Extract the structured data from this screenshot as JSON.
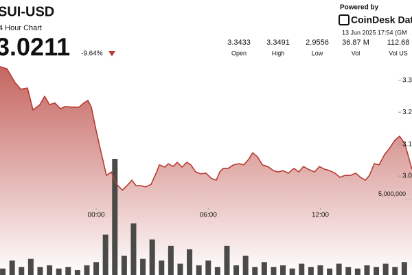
{
  "chart_data": {
    "type": "area",
    "symbol": "SUI-USD",
    "subtitle": "4 Hour Chart",
    "price": "3.0211",
    "change": "-9.64%",
    "powered_by": "Powered by",
    "brand": "CoinDesk Dat",
    "timestamp": "13 Jun 2025 17:54 (GM",
    "stats": [
      {
        "value": "3.3433",
        "label": "Open"
      },
      {
        "value": "3.3491",
        "label": "High"
      },
      {
        "value": "2.9556",
        "label": "Low"
      },
      {
        "value": "36.87 M",
        "label": "Vol"
      },
      {
        "value": "112.68",
        "label": "Vol US"
      }
    ],
    "color": "#b83a30",
    "x": [
      -5.15,
      -4.78,
      -4.34,
      -4.04,
      -3.68,
      -3.38,
      -3.01,
      -2.76,
      -2.5,
      -2.21,
      -1.91,
      -1.65,
      -1.29,
      -0.92,
      -0.66,
      -0.44,
      -0.26,
      0,
      0.29,
      0.55,
      0.81,
      1.1,
      1.4,
      1.65,
      1.91,
      2.13,
      2.39,
      2.65,
      2.94,
      3.24,
      3.38,
      3.68,
      3.86,
      4.12,
      4.34,
      4.6,
      4.85,
      5.07,
      5.33,
      5.59,
      5.88,
      6.18,
      6.43,
      6.62,
      6.8,
      7.06,
      7.35,
      7.65,
      7.9,
      8.16,
      8.38,
      8.64,
      8.9,
      9.19,
      9.49,
      9.74,
      10,
      10.29,
      10.59,
      10.85,
      11.1,
      11.4,
      11.69,
      11.95,
      12.21,
      12.5,
      12.79,
      13.05,
      13.31,
      13.6,
      13.9,
      14.15,
      14.41,
      14.63,
      14.89,
      15.15,
      15.44,
      15.74,
      15.99,
      16.25,
      16.54,
      16.91
    ],
    "series": [
      {
        "name": "Price",
        "color": "#b83a30",
        "values": [
          3.343,
          3.336,
          3.293,
          3.272,
          3.276,
          3.207,
          3.224,
          3.25,
          3.224,
          3.229,
          3.211,
          3.218,
          3.216,
          3.216,
          3.229,
          3.237,
          3.216,
          3.142,
          3.067,
          3.002,
          3.013,
          2.974,
          2.956,
          2.97,
          2.987,
          2.97,
          2.97,
          2.966,
          2.974,
          3.013,
          3.035,
          3.028,
          3.039,
          3.03,
          3.043,
          3.028,
          3.043,
          3.035,
          3.013,
          3.007,
          3.009,
          2.992,
          2.987,
          3.013,
          3.024,
          3.024,
          3.035,
          3.039,
          3.035,
          3.052,
          3.073,
          3.06,
          3.035,
          3.03,
          3.017,
          3.013,
          3.017,
          3.009,
          3.024,
          3.013,
          3.03,
          3.02,
          3.013,
          3.03,
          3.022,
          3.017,
          3.009,
          2.996,
          3.002,
          3.002,
          3.009,
          2.996,
          2.987,
          3.002,
          3.039,
          3.035,
          3.067,
          3.09,
          3.112,
          3.125,
          3.099,
          3.021
        ]
      }
    ],
    "volume": {
      "name": "Volume",
      "color": "#4a4a48",
      "x": [
        -5,
        -4.5,
        -4,
        -3.5,
        -3,
        -2.5,
        -2,
        -1.5,
        -1,
        -0.5,
        0,
        0.5,
        1,
        1.5,
        2,
        2.5,
        3,
        3.5,
        4,
        4.5,
        5,
        5.5,
        6,
        6.5,
        7,
        7.5,
        8,
        8.5,
        9,
        9.5,
        10,
        10.5,
        11,
        11.5,
        12,
        12.5,
        13,
        13.5,
        14,
        14.5,
        15,
        15.5,
        16,
        16.5
      ],
      "values": [
        400000,
        900000,
        500000,
        1000000,
        500000,
        600000,
        400000,
        500000,
        300000,
        600000,
        800000,
        2500000,
        7200000,
        1200000,
        3200000,
        1000000,
        2200000,
        900000,
        1800000,
        700000,
        1600000,
        600000,
        900000,
        500000,
        1800000,
        600000,
        1200000,
        500000,
        800000,
        500000,
        600000,
        400000,
        700000,
        500000,
        600000,
        400000,
        700000,
        500000,
        400000,
        600000,
        500000,
        700000,
        500000,
        800000
      ]
    },
    "xlim": [
      -5.15,
      16.91
    ],
    "xticks": [
      {
        "value": 0,
        "label": "00:00"
      },
      {
        "value": 6,
        "label": "06:00"
      },
      {
        "value": 12,
        "label": "12:00"
      }
    ],
    "ylim": [
      2.69,
      3.347
    ],
    "yticks": [
      {
        "value": 3,
        "label": "3.0"
      },
      3.1,
      3.2,
      3.3
    ],
    "y2lim": [
      0,
      13000000
    ],
    "y2ticks": [
      {
        "value": 5000000,
        "label": "5,000,000"
      }
    ]
  }
}
